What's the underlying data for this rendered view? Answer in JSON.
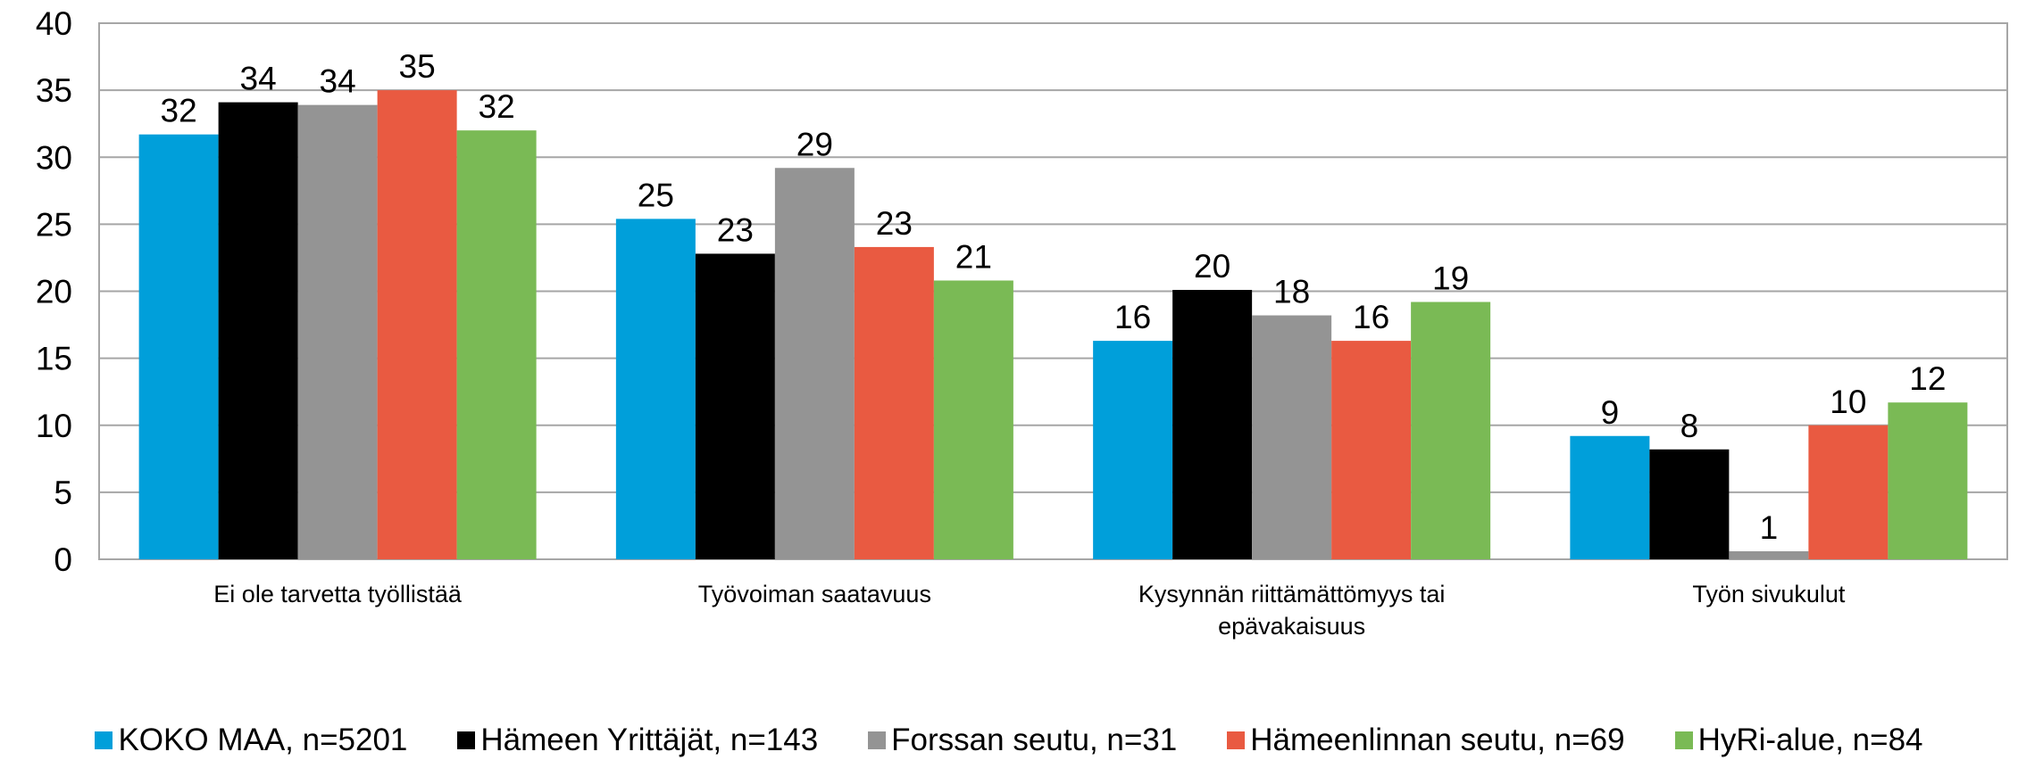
{
  "chart_data": {
    "type": "bar",
    "categories": [
      "Ei ole tarvetta työllistää",
      "Työvoiman saatavuus",
      "Kysynnän riittämättömyys tai epävakaisuus",
      "Työn sivukulut"
    ],
    "series": [
      {
        "name": "KOKO MAA, n=5201",
        "color": "#009fda",
        "values": [
          31.7,
          25.4,
          16.3,
          9.2
        ],
        "value_labels": [
          "32",
          "25",
          "16",
          "9"
        ]
      },
      {
        "name": "Hämeen Yrittäjät, n=143",
        "color": "#000000",
        "values": [
          34.1,
          22.8,
          20.1,
          8.2
        ],
        "value_labels": [
          "34",
          "23",
          "20",
          "8"
        ]
      },
      {
        "name": "Forssan seutu, n=31",
        "color": "#949494",
        "values": [
          33.9,
          29.2,
          18.2,
          0.6
        ],
        "value_labels": [
          "34",
          "29",
          "18",
          "1"
        ]
      },
      {
        "name": "Hämeenlinnan seutu, n=69",
        "color": "#e95a41",
        "values": [
          35.0,
          23.3,
          16.3,
          10.0
        ],
        "value_labels": [
          "35",
          "23",
          "16",
          "10"
        ]
      },
      {
        "name": "HyRi-alue, n=84",
        "color": "#7aba55",
        "values": [
          32.0,
          20.8,
          19.2,
          11.7
        ],
        "value_labels": [
          "32",
          "21",
          "19",
          "12"
        ]
      }
    ],
    "ylim": [
      0,
      40
    ],
    "yticks": [
      0,
      5,
      10,
      15,
      20,
      25,
      30,
      35,
      40
    ],
    "grid": true,
    "legend": "bottom"
  }
}
